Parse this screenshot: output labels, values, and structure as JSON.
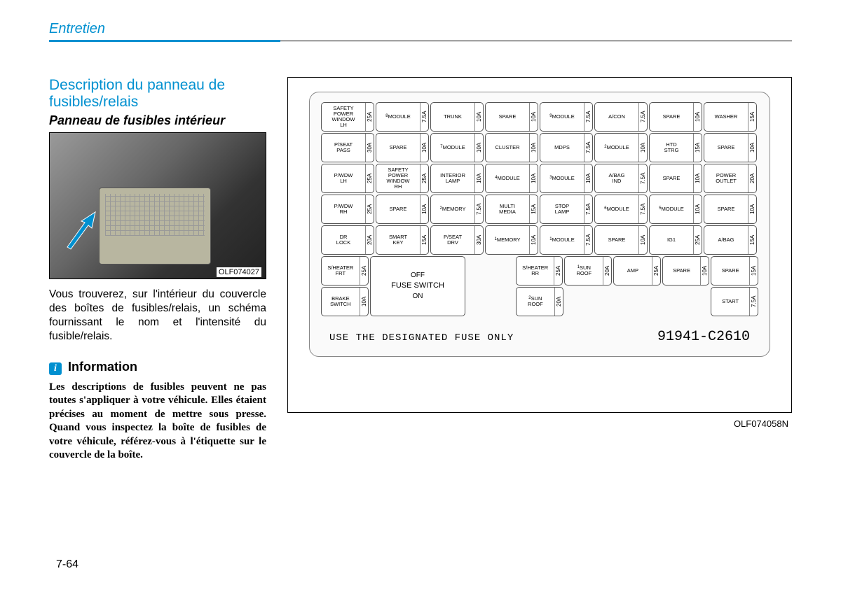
{
  "chapter": "Entretien",
  "section_title": "Description du panneau de fusibles/relais",
  "subsection": "Panneau de fusibles intérieur",
  "photo_caption": "OLF074027",
  "body_text": "Vous trouverez, sur l'intérieur du couvercle des boîtes de fusibles/relais, un schéma fournissant le nom et l'intensité du fusible/relais.",
  "info_label": "Information",
  "info_text": "Les descriptions de fusibles peuvent ne pas toutes s'appliquer à votre véhicule. Elles étaient précises au moment de mettre sous presse. Quand vous inspectez la boîte de fusibles de votre véhicule, référez-vous à l'étiquette sur le couvercle de la boîte.",
  "page_number": "7-64",
  "diagram_caption": "OLF074058N",
  "designated_text": "USE THE DESIGNATED FUSE ONLY",
  "part_number": "91941-C2610",
  "switch": {
    "off": "OFF",
    "mid": "FUSE SWITCH",
    "on": "ON"
  },
  "fuse_rows": [
    [
      {
        "label": "SAFETY POWER WINDOW LH",
        "amp": "25A"
      },
      {
        "label": "MODULE",
        "sup": "8",
        "amp": "7.5A"
      },
      {
        "label": "TRUNK",
        "amp": "10A"
      },
      {
        "label": "SPARE",
        "amp": "10A"
      },
      {
        "label": "MODULE",
        "sup": "9",
        "amp": "7.5A"
      },
      {
        "label": "A/CON",
        "amp": "7.5A"
      },
      {
        "label": "SPARE",
        "amp": "10A"
      },
      {
        "label": "WASHER",
        "amp": "15A"
      }
    ],
    [
      {
        "label": "P/SEAT PASS",
        "amp": "30A"
      },
      {
        "label": "SPARE",
        "amp": "10A"
      },
      {
        "label": "MODULE",
        "sup": "7",
        "amp": "10A"
      },
      {
        "label": "CLUSTER",
        "amp": "10A"
      },
      {
        "label": "MDPS",
        "amp": "7.5A"
      },
      {
        "label": "MODULE",
        "sup": "2",
        "amp": "10A"
      },
      {
        "label": "HTD STRG",
        "amp": "15A"
      },
      {
        "label": "SPARE",
        "amp": "10A"
      }
    ],
    [
      {
        "label": "P/WDW LH",
        "amp": "25A"
      },
      {
        "label": "SAFETY POWER WINDOW RH",
        "amp": "25A"
      },
      {
        "label": "INTERIOR LAMP",
        "amp": "10A"
      },
      {
        "label": "MODULE",
        "sup": "4",
        "amp": "10A"
      },
      {
        "label": "MODULE",
        "sup": "3",
        "amp": "10A"
      },
      {
        "label": "A/BAG IND",
        "amp": "7.5A"
      },
      {
        "label": "SPARE",
        "amp": "10A"
      },
      {
        "label": "POWER OUTLET",
        "amp": "20A"
      }
    ],
    [
      {
        "label": "P/WDW RH",
        "amp": "25A"
      },
      {
        "label": "SPARE",
        "amp": "10A"
      },
      {
        "label": "MEMORY",
        "sup": "2",
        "amp": "7.5A"
      },
      {
        "label": "MULTI MEDIA",
        "amp": "15A"
      },
      {
        "label": "STOP LAMP",
        "amp": "7.5A"
      },
      {
        "label": "MODULE",
        "sup": "6",
        "amp": "7.5A"
      },
      {
        "label": "MODULE",
        "sup": "5",
        "amp": "10A"
      },
      {
        "label": "SPARE",
        "amp": "10A"
      }
    ],
    [
      {
        "label": "DR LOCK",
        "amp": "20A"
      },
      {
        "label": "SMART KEY",
        "amp": "15A"
      },
      {
        "label": "P/SEAT DRV",
        "amp": "30A"
      },
      {
        "label": "MEMORY",
        "sup": "1",
        "amp": "10A"
      },
      {
        "label": "MODULE",
        "sup": "1",
        "amp": "7.5A"
      },
      {
        "label": "SPARE",
        "amp": "10A"
      },
      {
        "label": "IG1",
        "amp": "25A"
      },
      {
        "label": "A/BAG",
        "amp": "15A"
      }
    ],
    [
      {
        "label": "S/HEATER FRT",
        "amp": "25A"
      },
      {
        "type": "switch-top"
      },
      {
        "type": "blank"
      },
      {
        "label": "S/HEATER RR",
        "amp": "25A"
      },
      {
        "label": "SUN ROOF",
        "sup": "1",
        "amp": "20A"
      },
      {
        "label": "AMP",
        "amp": "25A"
      },
      {
        "label": "SPARE",
        "amp": "10A"
      },
      {
        "label": "SPARE",
        "amp": "15A"
      }
    ],
    [
      {
        "label": "BRAKE SWITCH",
        "amp": "10A"
      },
      {
        "type": "switch-span"
      },
      {
        "type": "blank"
      },
      {
        "label": "SUN ROOF",
        "sup": "2",
        "amp": "20A"
      },
      {
        "type": "blank"
      },
      {
        "type": "blank"
      },
      {
        "type": "blank"
      },
      {
        "label": "START",
        "amp": "7.5A"
      }
    ]
  ],
  "colors": {
    "accent": "#0090d0",
    "text": "#000000"
  }
}
